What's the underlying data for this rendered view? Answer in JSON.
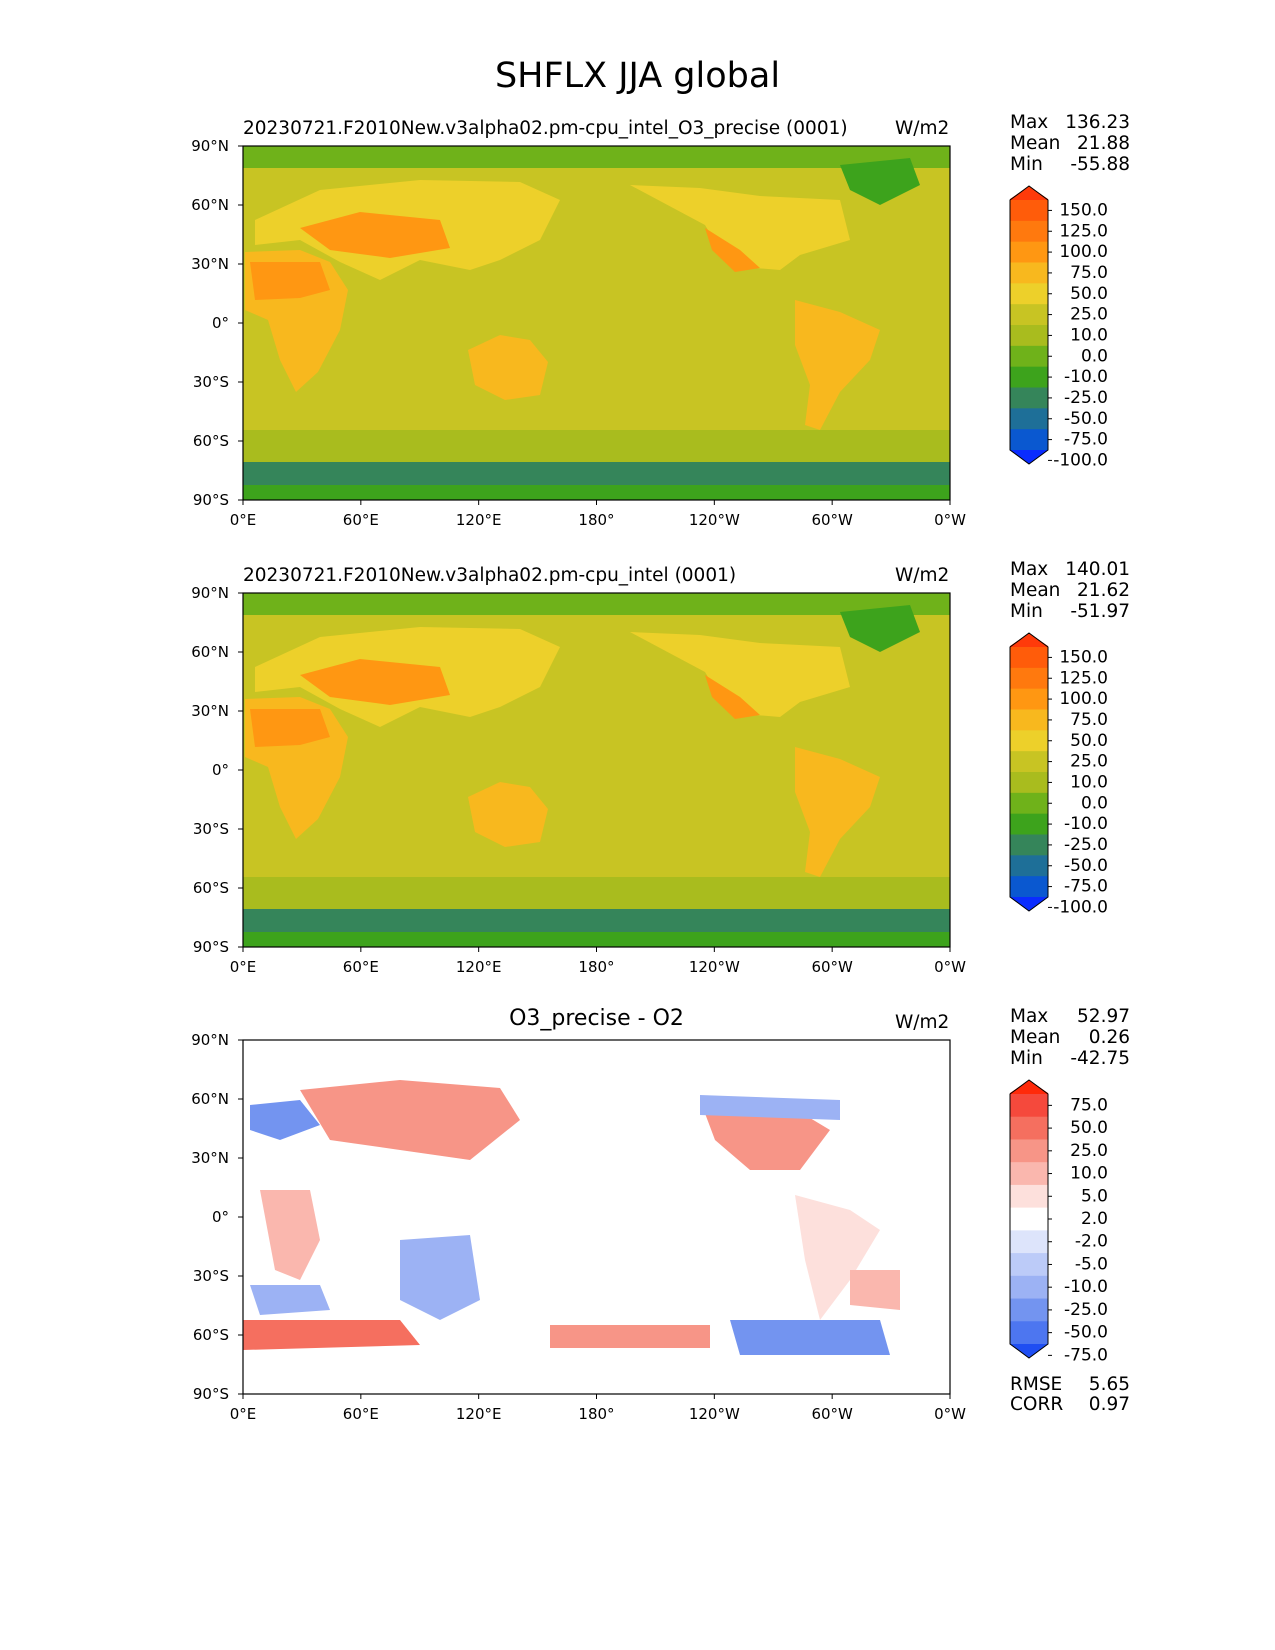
{
  "title": "SHFLX JJA global",
  "chart_data": [
    {
      "type": "heatmap",
      "title": "20230721.F2010New.v3alpha02.pm-cpu_intel_O3_precise (0001)",
      "units": "W/m2",
      "xlabel": "",
      "ylabel": "",
      "xticks": [
        "0°E",
        "60°E",
        "120°E",
        "180°",
        "120°W",
        "60°W",
        "0°W"
      ],
      "yticks": [
        "90°N",
        "60°N",
        "30°N",
        "0°",
        "30°S",
        "60°S",
        "90°S"
      ],
      "xlim": [
        0,
        360
      ],
      "ylim": [
        -90,
        90
      ],
      "stats": {
        "max_label": "Max",
        "max": "136.23",
        "mean_label": "Mean",
        "mean": "21.88",
        "min_label": "Min",
        "min": "-55.88"
      },
      "colorbar": {
        "levels": [
          "150.0",
          "125.0",
          "100.0",
          "75.0",
          "50.0",
          "25.0",
          "10.0",
          "0.0",
          "-10.0",
          "-25.0",
          "-50.0",
          "-75.0",
          "-100.0"
        ],
        "colors": [
          "#ff3a0a",
          "#ff5c0a",
          "#ff790e",
          "#ff9712",
          "#f8b81e",
          "#edd02a",
          "#c8c423",
          "#a9bc1e",
          "#6fb21a",
          "#3da31c",
          "#35855a",
          "#1e6f98",
          "#0a58d0",
          "#0a2cff"
        ]
      }
    },
    {
      "type": "heatmap",
      "title": "20230721.F2010New.v3alpha02.pm-cpu_intel (0001)",
      "units": "W/m2",
      "xlabel": "",
      "ylabel": "",
      "xticks": [
        "0°E",
        "60°E",
        "120°E",
        "180°",
        "120°W",
        "60°W",
        "0°W"
      ],
      "yticks": [
        "90°N",
        "60°N",
        "30°N",
        "0°",
        "30°S",
        "60°S",
        "90°S"
      ],
      "xlim": [
        0,
        360
      ],
      "ylim": [
        -90,
        90
      ],
      "stats": {
        "max_label": "Max",
        "max": "140.01",
        "mean_label": "Mean",
        "mean": "21.62",
        "min_label": "Min",
        "min": "-51.97"
      },
      "colorbar": {
        "levels": [
          "150.0",
          "125.0",
          "100.0",
          "75.0",
          "50.0",
          "25.0",
          "10.0",
          "0.0",
          "-10.0",
          "-25.0",
          "-50.0",
          "-75.0",
          "-100.0"
        ],
        "colors": [
          "#ff3a0a",
          "#ff5c0a",
          "#ff790e",
          "#ff9712",
          "#f8b81e",
          "#edd02a",
          "#c8c423",
          "#a9bc1e",
          "#6fb21a",
          "#3da31c",
          "#35855a",
          "#1e6f98",
          "#0a58d0",
          "#0a2cff"
        ]
      }
    },
    {
      "type": "heatmap",
      "title": "O3_precise - O2",
      "units": "W/m2",
      "xlabel": "",
      "ylabel": "",
      "xticks": [
        "0°E",
        "60°E",
        "120°E",
        "180°",
        "120°W",
        "60°W",
        "0°W"
      ],
      "yticks": [
        "90°N",
        "60°N",
        "30°N",
        "0°",
        "30°S",
        "60°S",
        "90°S"
      ],
      "xlim": [
        0,
        360
      ],
      "ylim": [
        -90,
        90
      ],
      "stats": {
        "max_label": "Max",
        "max": "52.97",
        "mean_label": "Mean",
        "mean": "0.26",
        "min_label": "Min",
        "min": "-42.75"
      },
      "metrics": {
        "rmse_label": "RMSE",
        "rmse": "5.65",
        "corr_label": "CORR",
        "corr": "0.97"
      },
      "colorbar": {
        "levels": [
          "75.0",
          "50.0",
          "25.0",
          "10.0",
          "5.0",
          "2.0",
          "-2.0",
          "-5.0",
          "-10.0",
          "-25.0",
          "-50.0",
          "-75.0"
        ],
        "colors": [
          "#ff2a0a",
          "#f5493c",
          "#f56f5f",
          "#f79587",
          "#fab7ae",
          "#fde0dc",
          "#ffffff",
          "#dde4fb",
          "#bccbf8",
          "#9cb2f4",
          "#7394f0",
          "#4d76f0",
          "#1f4ef2"
        ]
      }
    }
  ]
}
